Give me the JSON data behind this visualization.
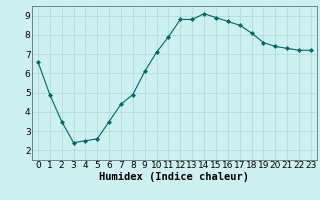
{
  "x": [
    0,
    1,
    2,
    3,
    4,
    5,
    6,
    7,
    8,
    9,
    10,
    11,
    12,
    13,
    14,
    15,
    16,
    17,
    18,
    19,
    20,
    21,
    22,
    23
  ],
  "y": [
    6.6,
    4.9,
    3.5,
    2.4,
    2.5,
    2.6,
    3.5,
    4.4,
    4.9,
    6.1,
    7.1,
    7.9,
    8.8,
    8.8,
    9.1,
    8.9,
    8.7,
    8.5,
    8.1,
    7.6,
    7.4,
    7.3,
    7.2,
    7.2
  ],
  "line_color": "#006666",
  "marker": "D",
  "marker_size": 2,
  "bg_color": "#cff0f0",
  "grid_color": "#aadada",
  "xlabel": "Humidex (Indice chaleur)",
  "xlim": [
    -0.5,
    23.5
  ],
  "ylim": [
    1.5,
    9.5
  ],
  "yticks": [
    2,
    3,
    4,
    5,
    6,
    7,
    8,
    9
  ],
  "xticks": [
    0,
    1,
    2,
    3,
    4,
    5,
    6,
    7,
    8,
    9,
    10,
    11,
    12,
    13,
    14,
    15,
    16,
    17,
    18,
    19,
    20,
    21,
    22,
    23
  ],
  "tick_fontsize": 6.5,
  "xlabel_fontsize": 7.5,
  "xlabel_bold": true
}
